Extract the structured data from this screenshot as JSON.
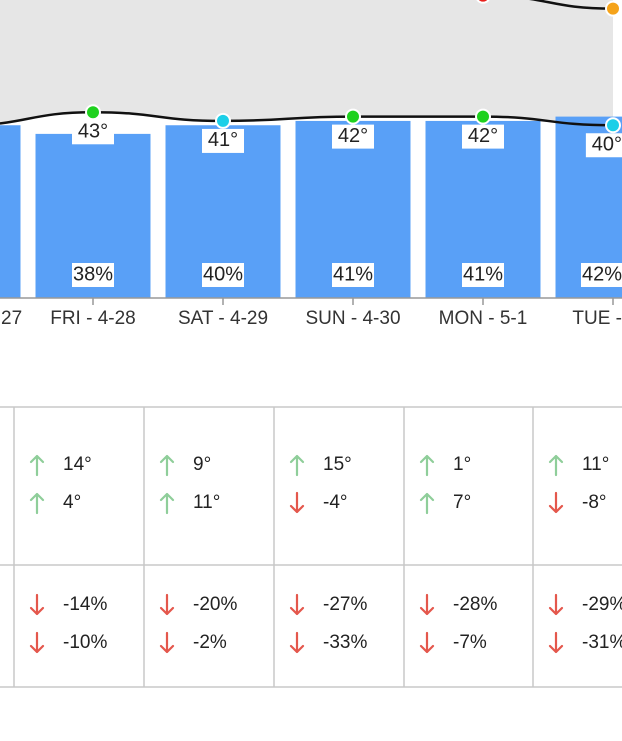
{
  "chart_data": {
    "type": "bar",
    "categories": [
      "27",
      "FRI - 4-28",
      "SAT - 4-29",
      "SUN - 4-30",
      "MON - 5-1",
      "TUE -"
    ],
    "ylim": [
      0,
      69
    ],
    "series": [
      {
        "type": "bar",
        "color": "#59a0f7",
        "values": [
          40,
          38,
          40,
          41,
          41,
          42
        ],
        "value_labels": [
          null,
          "38%",
          "40%",
          "41%",
          "41%",
          "42%"
        ]
      },
      {
        "type": "line",
        "color": "#111111",
        "values": [
          40,
          43,
          41,
          42,
          42,
          40
        ],
        "value_labels": [
          null,
          "43°",
          "41°",
          "42°",
          "42°",
          "40°"
        ],
        "point_colors": [
          "#1ccfe8",
          "#1fd11f",
          "#1ccfe8",
          "#1fd11f",
          "#1fd11f",
          "#1ccfe8"
        ]
      },
      {
        "type": "line",
        "color": "#111111",
        "values": [
          null,
          null,
          null,
          null,
          70,
          67
        ],
        "point_colors": [
          null,
          null,
          null,
          null,
          "#e8201c",
          "#f5a31a"
        ]
      }
    ]
  },
  "table": {
    "rows": [
      [
        [
          {
            "trend": "up",
            "text": "14°"
          },
          {
            "trend": "up",
            "text": "4°"
          }
        ],
        [
          {
            "trend": "up",
            "text": "9°"
          },
          {
            "trend": "up",
            "text": "11°"
          }
        ],
        [
          {
            "trend": "up",
            "text": "15°"
          },
          {
            "trend": "down",
            "text": "-4°"
          }
        ],
        [
          {
            "trend": "up",
            "text": "1°"
          },
          {
            "trend": "up",
            "text": "7°"
          }
        ],
        [
          {
            "trend": "up",
            "text": "11°"
          },
          {
            "trend": "down",
            "text": "-8°"
          }
        ]
      ],
      [
        [
          {
            "trend": "down",
            "text": "-14%"
          },
          {
            "trend": "down",
            "text": "-10%"
          }
        ],
        [
          {
            "trend": "down",
            "text": "-20%"
          },
          {
            "trend": "down",
            "text": "-2%"
          }
        ],
        [
          {
            "trend": "down",
            "text": "-27%"
          },
          {
            "trend": "down",
            "text": "-33%"
          }
        ],
        [
          {
            "trend": "down",
            "text": "-28%"
          },
          {
            "trend": "down",
            "text": "-7%"
          }
        ],
        [
          {
            "trend": "down",
            "text": "-29%"
          },
          {
            "trend": "down",
            "text": "-31%"
          }
        ]
      ]
    ]
  }
}
